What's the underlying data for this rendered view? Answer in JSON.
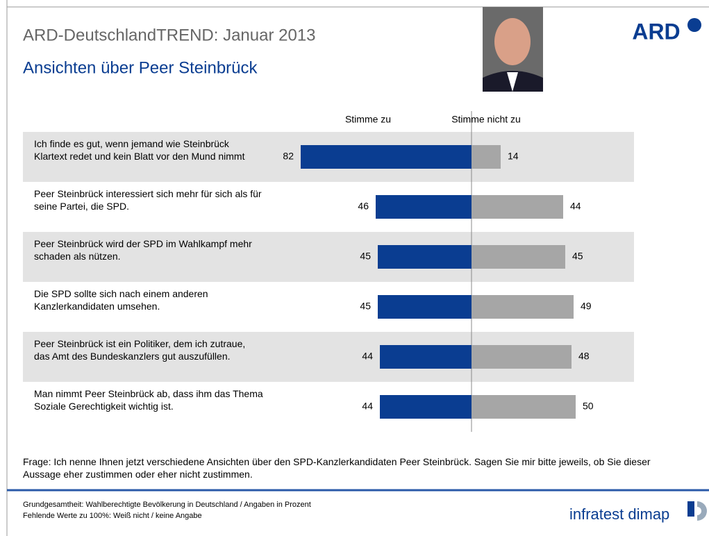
{
  "header": {
    "title": "ARD-DeutschlandTREND: Januar 2013",
    "subtitle": "Ansichten über Peer Steinbrück",
    "logo": "ARD"
  },
  "chart_data": {
    "type": "diverging-bar",
    "categories": [
      "Ich finde es gut, wenn jemand wie Steinbrück Klartext redet und kein Blatt vor den Mund nimmt",
      "Peer Steinbrück interessiert sich mehr für sich als für seine Partei, die SPD.",
      "Peer Steinbrück wird der SPD im Wahlkampf mehr schaden als nützen.",
      "Die SPD sollte sich nach einem anderen Kanzlerkandidaten umsehen.",
      "Peer Steinbrück  ist ein Politiker, dem ich zutraue, das Amt des Bundeskanzlers gut auszufüllen.",
      "Man nimmt Peer Steinbrück ab, dass ihm das Thema Soziale Gerechtigkeit wichtig ist."
    ],
    "series": [
      {
        "name": "Stimme zu",
        "color": "#0a3d91",
        "values": [
          82,
          46,
          45,
          45,
          44,
          44
        ]
      },
      {
        "name": "Stimme nicht zu",
        "color": "#a6a6a6",
        "values": [
          14,
          44,
          45,
          49,
          48,
          50
        ]
      }
    ]
  },
  "footer": {
    "question": "Frage: Ich nenne Ihnen jetzt verschiedene Ansichten über den SPD-Kanzlerkandidaten Peer Steinbrück. Sagen Sie mir bitte jeweils, ob Sie dieser Aussage eher zustimmen oder eher nicht zustimmen.",
    "base": "Grundgesamtheit: Wahlberechtigte Bevölkerung in Deutschland / Angaben in Prozent",
    "missing": "Fehlende Werte zu 100%: Weiß nicht / keine Angabe",
    "brand": "infratest dimap"
  }
}
